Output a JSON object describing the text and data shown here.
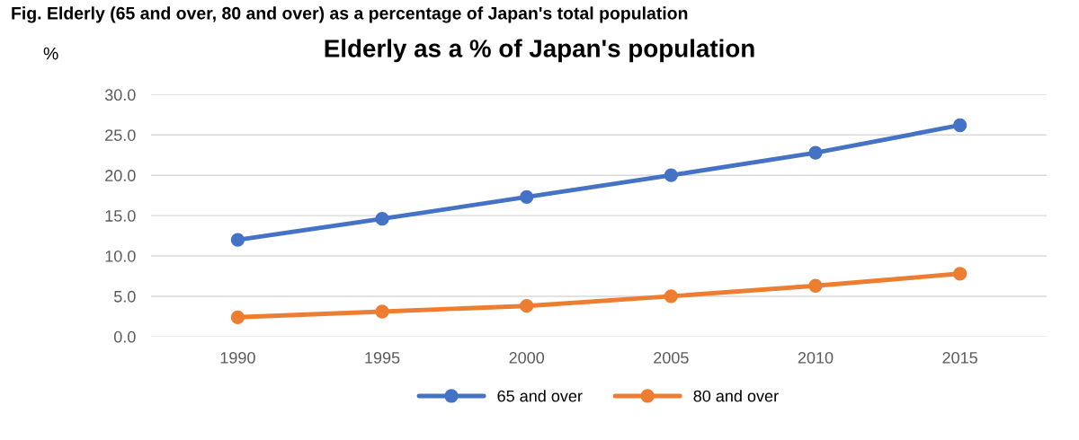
{
  "chart_data": {
    "type": "line",
    "title": "Elderly as a % of Japan's population",
    "ylabel": "%",
    "annotations": [
      "Fig. Elderly (65 and over, 80 and over) as a percentage of Japan's total population"
    ],
    "categories": [
      "1990",
      "1995",
      "2000",
      "2005",
      "2010",
      "2015"
    ],
    "series": [
      {
        "name": "65 and over",
        "color": "#4472c4",
        "values": [
          12.0,
          14.6,
          17.3,
          20.0,
          22.8,
          26.2
        ]
      },
      {
        "name": "80 and over",
        "color": "#ed7d31",
        "values": [
          2.4,
          3.1,
          3.8,
          5.0,
          6.3,
          7.8
        ]
      }
    ],
    "ylim": [
      0,
      30
    ],
    "yticks": [
      {
        "value": 0,
        "label": "0.0"
      },
      {
        "value": 5,
        "label": "5.0"
      },
      {
        "value": 10,
        "label": "10.0"
      },
      {
        "value": 15,
        "label": "15.0"
      },
      {
        "value": 20,
        "label": "20.0"
      },
      {
        "value": 25,
        "label": "25.0"
      },
      {
        "value": 30,
        "label": "30.0"
      }
    ],
    "grid": "y",
    "legend": "bottom",
    "marker": "circle",
    "line_style": "solid"
  }
}
